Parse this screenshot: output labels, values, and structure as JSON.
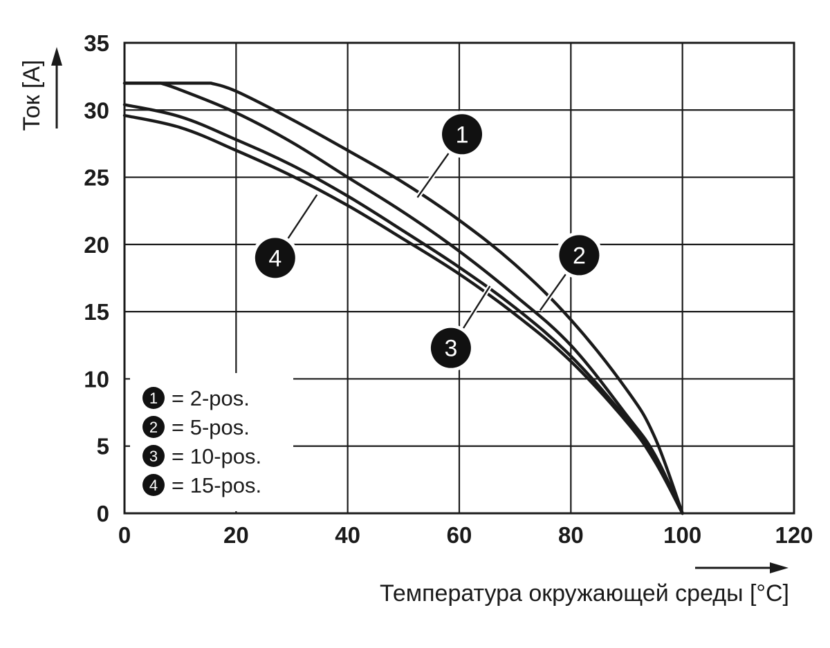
{
  "chart_data": {
    "type": "line",
    "xlabel": "Температура окружающей среды [°C]",
    "ylabel": "Ток [A]",
    "xlim": [
      0,
      120
    ],
    "ylim": [
      0,
      35
    ],
    "xticks": [
      "0",
      "20",
      "40",
      "60",
      "80",
      "100",
      "120"
    ],
    "yticks": [
      "0",
      "5",
      "10",
      "15",
      "20",
      "25",
      "30",
      "35"
    ],
    "grid": true,
    "legend_position": "bottom-left",
    "colors": {
      "line": "#1a1a1a",
      "grid": "#1a1a1a",
      "marker": "#111111"
    },
    "series": [
      {
        "id": "1",
        "name": "2-pos.",
        "x": [
          0,
          15.5,
          20,
          30,
          40,
          50,
          60,
          70,
          80,
          90,
          95,
          100
        ],
        "y": [
          32,
          32,
          31.4,
          29.3,
          27.0,
          24.6,
          21.8,
          18.5,
          14.4,
          9.2,
          5.7,
          0
        ]
      },
      {
        "id": "2",
        "name": "5-pos.",
        "x": [
          0,
          6.5,
          10,
          20,
          30,
          40,
          50,
          60,
          70,
          80,
          90,
          95,
          100
        ],
        "y": [
          32,
          32,
          31.5,
          29.8,
          27.6,
          25.0,
          22.4,
          19.5,
          16.2,
          12.5,
          7.3,
          4.4,
          0
        ]
      },
      {
        "id": "3",
        "name": "10-pos.",
        "x": [
          0,
          10,
          20,
          30,
          40,
          50,
          60,
          70,
          80,
          90,
          95,
          100
        ],
        "y": [
          30.4,
          29.5,
          27.8,
          25.9,
          23.6,
          21.0,
          18.3,
          15.3,
          11.7,
          7.0,
          4.0,
          0
        ]
      },
      {
        "id": "4",
        "name": "15-pos.",
        "x": [
          0,
          10,
          20,
          30,
          40,
          50,
          60,
          70,
          80,
          90,
          95,
          100
        ],
        "y": [
          29.6,
          28.7,
          27.0,
          25.1,
          22.9,
          20.4,
          17.8,
          14.8,
          11.3,
          6.8,
          3.9,
          0
        ]
      }
    ],
    "annotations": [
      {
        "label": "1",
        "x": 60.5,
        "y": 28.2,
        "target_x": 52.5,
        "target_y": 23.5
      },
      {
        "label": "2",
        "x": 81.5,
        "y": 19.2,
        "target_x": 74.5,
        "target_y": 15.1
      },
      {
        "label": "3",
        "x": 58.5,
        "y": 12.3,
        "target_x": 65.5,
        "target_y": 16.9
      },
      {
        "label": "4",
        "x": 27,
        "y": 19.0,
        "target_x": 34.5,
        "target_y": 23.7
      }
    ],
    "legend": [
      {
        "num": "1",
        "text": "= 2-pos."
      },
      {
        "num": "2",
        "text": "= 5-pos."
      },
      {
        "num": "3",
        "text": "= 10-pos."
      },
      {
        "num": "4",
        "text": "= 15-pos."
      }
    ]
  }
}
